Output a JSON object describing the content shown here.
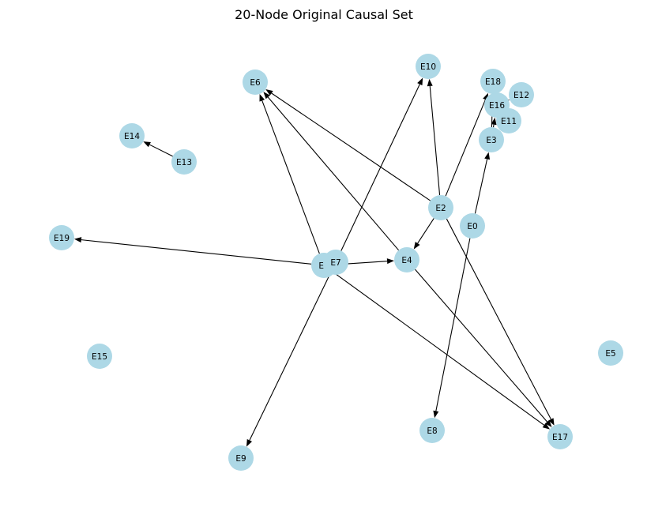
{
  "figure": {
    "title": "20-Node Original Causal Set"
  },
  "graph": {
    "node_color": "#add8e6",
    "edge_color": "#000000",
    "nodes": [
      {
        "id": "E0",
        "label": "E0"
      },
      {
        "id": "E1",
        "label": "E1"
      },
      {
        "id": "E2",
        "label": "E2"
      },
      {
        "id": "E3",
        "label": "E3"
      },
      {
        "id": "E4",
        "label": "E4"
      },
      {
        "id": "E5",
        "label": "E5"
      },
      {
        "id": "E6",
        "label": "E6"
      },
      {
        "id": "E7",
        "label": "E7"
      },
      {
        "id": "E8",
        "label": "E8"
      },
      {
        "id": "E9",
        "label": "E9"
      },
      {
        "id": "E10",
        "label": "E10"
      },
      {
        "id": "E11",
        "label": "E11"
      },
      {
        "id": "E12",
        "label": "E12"
      },
      {
        "id": "E13",
        "label": "E13"
      },
      {
        "id": "E14",
        "label": "E14"
      },
      {
        "id": "E15",
        "label": "E15"
      },
      {
        "id": "E16",
        "label": "E16"
      },
      {
        "id": "E17",
        "label": "E17"
      },
      {
        "id": "E18",
        "label": "E18"
      },
      {
        "id": "E19",
        "label": "E19"
      }
    ],
    "edges": [
      {
        "from": "E13",
        "to": "E14"
      },
      {
        "from": "E1",
        "to": "E19"
      },
      {
        "from": "E1",
        "to": "E4"
      },
      {
        "from": "E1",
        "to": "E6"
      },
      {
        "from": "E1",
        "to": "E17"
      },
      {
        "from": "E7",
        "to": "E10"
      },
      {
        "from": "E7",
        "to": "E9"
      },
      {
        "from": "E4",
        "to": "E6"
      },
      {
        "from": "E4",
        "to": "E17"
      },
      {
        "from": "E2",
        "to": "E6"
      },
      {
        "from": "E2",
        "to": "E10"
      },
      {
        "from": "E2",
        "to": "E18"
      },
      {
        "from": "E2",
        "to": "E4"
      },
      {
        "from": "E2",
        "to": "E17"
      },
      {
        "from": "E0",
        "to": "E3"
      },
      {
        "from": "E0",
        "to": "E8"
      },
      {
        "from": "E3",
        "to": "E16"
      },
      {
        "from": "E3",
        "to": "E18"
      },
      {
        "from": "E16",
        "to": "E12"
      },
      {
        "from": "E11",
        "to": "E16"
      }
    ]
  }
}
